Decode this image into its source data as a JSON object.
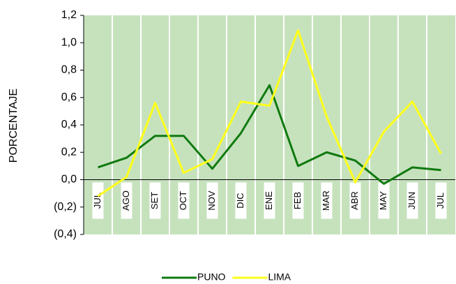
{
  "chart_data": {
    "type": "line",
    "y_label": "PORCENTAJE",
    "categories": [
      "JUL",
      "AGO",
      "SET",
      "OCT",
      "NOV",
      "DIC",
      "ENE",
      "FEB",
      "MAR",
      "ABR",
      "MAY",
      "JUN",
      "JUL"
    ],
    "series": [
      {
        "name": "PUNO",
        "color": "#0f7a0f",
        "values": [
          0.09,
          0.16,
          0.32,
          0.32,
          0.08,
          0.34,
          0.69,
          0.1,
          0.2,
          0.14,
          -0.03,
          0.09,
          0.07
        ]
      },
      {
        "name": "LIMA",
        "color": "#ffff1a",
        "values": [
          -0.12,
          0.02,
          0.56,
          0.05,
          0.15,
          0.57,
          0.54,
          1.09,
          0.46,
          -0.02,
          0.35,
          0.57,
          0.19
        ]
      }
    ],
    "ylim": [
      -0.4,
      1.2
    ],
    "yticks": [
      {
        "value": -0.4,
        "label": "(0,4)"
      },
      {
        "value": -0.2,
        "label": "(0,2)"
      },
      {
        "value": 0,
        "label": "0,0"
      },
      {
        "value": 0.2,
        "label": "0,2"
      },
      {
        "value": 0.4,
        "label": "0,4"
      },
      {
        "value": 0.6,
        "label": "0,6"
      },
      {
        "value": 0.8,
        "label": "0,8"
      },
      {
        "value": 1.0,
        "label": "1,0"
      },
      {
        "value": 1.2,
        "label": "1,2"
      }
    ],
    "plot_background": "#c6e2bd",
    "legend": "bottom"
  }
}
